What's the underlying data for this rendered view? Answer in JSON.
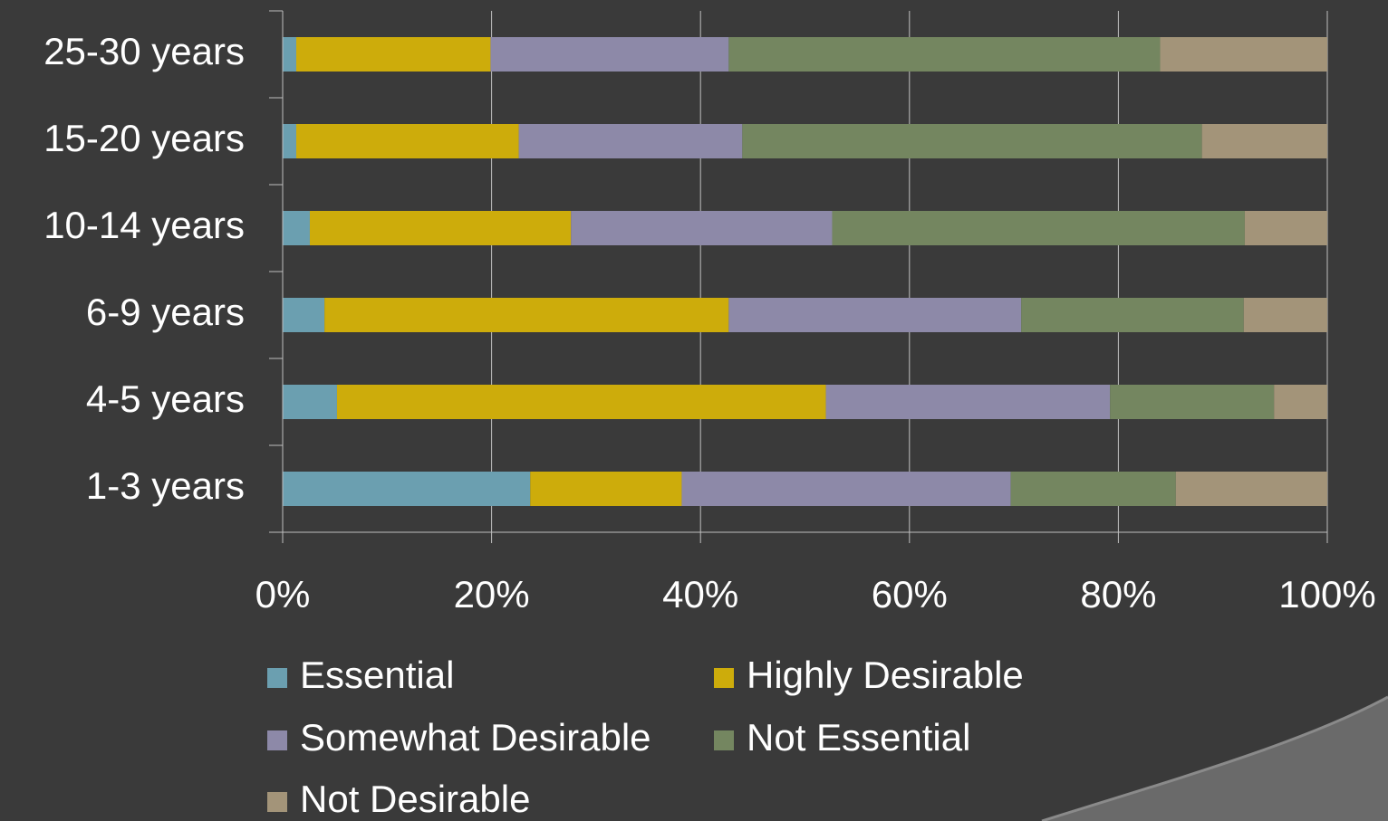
{
  "chart_data": {
    "type": "stacked-bar-horizontal",
    "categories": [
      "25-30 years",
      "15-20 years",
      "10-14 years",
      "6-9 years",
      "4-5 years",
      "1-3 years"
    ],
    "series": [
      {
        "name": "Essential",
        "color": "#6b9fb0",
        "values": [
          1.3,
          1.3,
          2.6,
          4.0,
          5.2,
          23.7
        ]
      },
      {
        "name": "Highly Desirable",
        "color": "#cdac0b",
        "values": [
          18.6,
          21.3,
          25.0,
          38.7,
          46.8,
          14.5
        ]
      },
      {
        "name": "Somewhat Desirable",
        "color": "#8d89a8",
        "values": [
          22.8,
          21.4,
          25.0,
          28.0,
          27.2,
          31.5
        ]
      },
      {
        "name": "Not Essential",
        "color": "#748660",
        "values": [
          41.3,
          44.0,
          39.5,
          21.3,
          15.7,
          15.8
        ]
      },
      {
        "name": "Not Desirable",
        "color": "#a39479",
        "values": [
          16.0,
          12.0,
          7.9,
          8.0,
          5.1,
          14.5
        ]
      }
    ],
    "xlim": [
      0,
      100
    ],
    "xticks": [
      {
        "value": 0,
        "label": "0%"
      },
      {
        "value": 20,
        "label": "20%"
      },
      {
        "value": 40,
        "label": "40%"
      },
      {
        "value": 60,
        "label": "60%"
      },
      {
        "value": 80,
        "label": "80%"
      },
      {
        "value": 100,
        "label": "100%"
      }
    ],
    "grid": true
  }
}
